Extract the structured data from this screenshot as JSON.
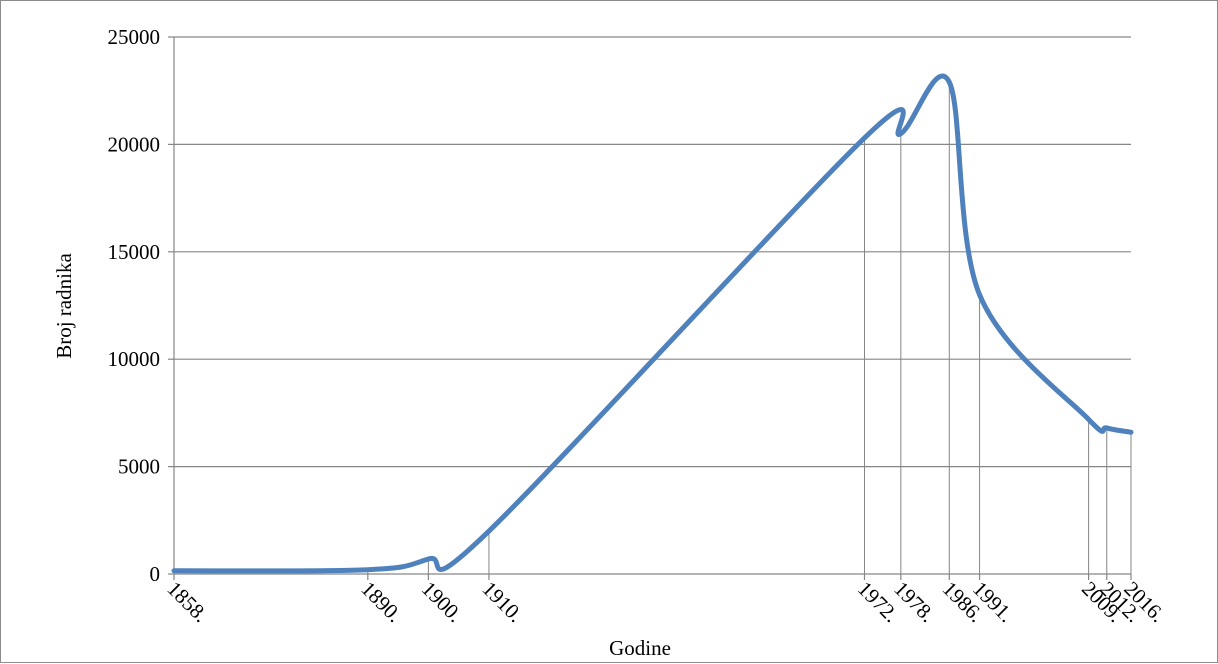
{
  "chart_data": {
    "type": "line",
    "title": "",
    "xlabel": "Godine",
    "ylabel": "Broj radnika",
    "ylim": [
      0,
      25000
    ],
    "yticks": [
      0,
      5000,
      10000,
      15000,
      20000,
      25000
    ],
    "grid": "horizontal",
    "line_color": "#4F81BD",
    "categories": [
      "1858.",
      "1890.",
      "1900.",
      "1910.",
      "1972.",
      "1978.",
      "1986.",
      "1991.",
      "2009.",
      "2012.",
      "2016."
    ],
    "series": [
      {
        "name": "",
        "values": [
          150,
          200,
          700,
          2000,
          20300,
          20500,
          22900,
          13000,
          7200,
          6800,
          6600
        ]
      }
    ]
  }
}
